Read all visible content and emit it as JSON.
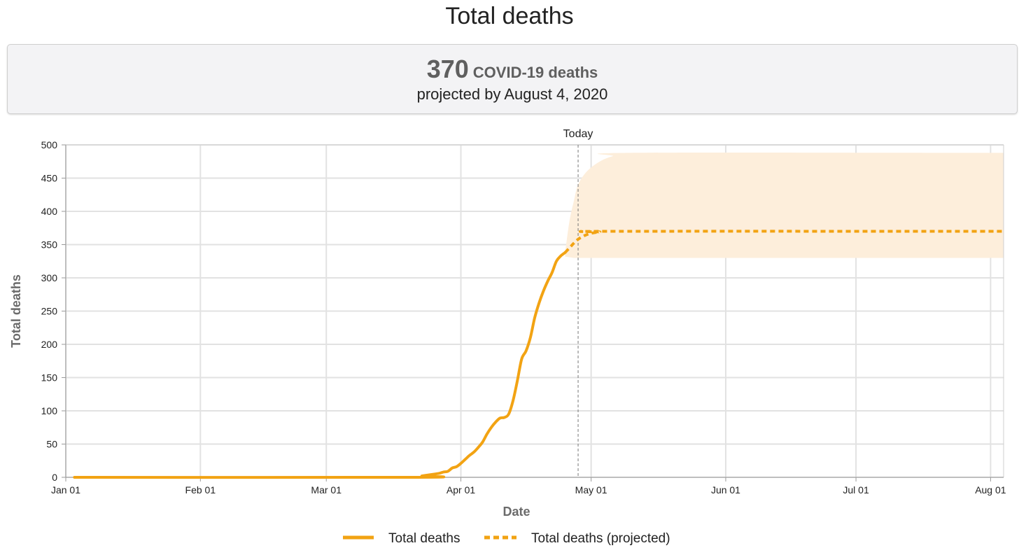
{
  "page": {
    "title": "Total deaths",
    "summary": {
      "value": "370",
      "unit": "COVID-19 deaths",
      "subtitle": "projected by August 4, 2020"
    }
  },
  "colors": {
    "series": "#f2a313",
    "band": "#fdeedb",
    "grid": "#e2e2e2",
    "axis": "#9a9a9a"
  },
  "chart_data": {
    "type": "line",
    "xlabel": "Date",
    "ylabel": "Total deaths",
    "x_ticks": [
      "Jan 01",
      "Feb 01",
      "Mar 01",
      "Apr 01",
      "May 01",
      "Jun 01",
      "Jul 01",
      "Aug 01"
    ],
    "x_tick_dates": [
      "2020-01-01",
      "2020-02-01",
      "2020-03-01",
      "2020-04-01",
      "2020-05-01",
      "2020-06-01",
      "2020-07-01",
      "2020-08-01"
    ],
    "xlim": [
      "2020-01-01",
      "2020-08-04"
    ],
    "ylim": [
      0,
      500
    ],
    "y_ticks": [
      0,
      50,
      100,
      150,
      200,
      250,
      300,
      350,
      400,
      450,
      500
    ],
    "today": {
      "label": "Today",
      "date": "2020-04-28"
    },
    "grid": true,
    "legend_position": "bottom",
    "series": [
      {
        "name": "Total deaths",
        "style": "solid",
        "points": [
          [
            "2020-01-03",
            0
          ],
          [
            "2020-03-22",
            0
          ],
          [
            "2020-03-23",
            2
          ],
          [
            "2020-03-25",
            4
          ],
          [
            "2020-03-27",
            6
          ],
          [
            "2020-03-28",
            8
          ],
          [
            "2020-03-29",
            9
          ],
          [
            "2020-03-30",
            14
          ],
          [
            "2020-03-31",
            16
          ],
          [
            "2020-04-01",
            21
          ],
          [
            "2020-04-02",
            27
          ],
          [
            "2020-04-03",
            33
          ],
          [
            "2020-04-04",
            38
          ],
          [
            "2020-04-05",
            45
          ],
          [
            "2020-04-06",
            53
          ],
          [
            "2020-04-07",
            65
          ],
          [
            "2020-04-08",
            75
          ],
          [
            "2020-04-09",
            83
          ],
          [
            "2020-04-10",
            89
          ],
          [
            "2020-04-11",
            90
          ],
          [
            "2020-04-12",
            95
          ],
          [
            "2020-04-13",
            115
          ],
          [
            "2020-04-14",
            145
          ],
          [
            "2020-04-15",
            178
          ],
          [
            "2020-04-16",
            190
          ],
          [
            "2020-04-17",
            210
          ],
          [
            "2020-04-18",
            240
          ],
          [
            "2020-04-19",
            262
          ],
          [
            "2020-04-20",
            280
          ],
          [
            "2020-04-21",
            295
          ],
          [
            "2020-04-22",
            308
          ],
          [
            "2020-04-23",
            325
          ],
          [
            "2020-04-24",
            333
          ],
          [
            "2020-04-25",
            338
          ]
        ]
      },
      {
        "name": "Total deaths (projected)",
        "style": "dashed",
        "points": [
          [
            "2020-04-25",
            338
          ],
          [
            "2020-04-26",
            345
          ],
          [
            "2020-04-27",
            352
          ],
          [
            "2020-04-28",
            358
          ],
          [
            "2020-04-29",
            362
          ],
          [
            "2020-04-30",
            365
          ],
          [
            "2020-05-01",
            367
          ],
          [
            "2020-05-03",
            369
          ],
          [
            "2020-05-06",
            370
          ],
          [
            "2020-08-04",
            370
          ]
        ],
        "band": {
          "upper": [
            [
              "2020-04-25",
              338
            ],
            [
              "2020-04-26",
              385
            ],
            [
              "2020-04-27",
              415
            ],
            [
              "2020-04-28",
              440
            ],
            [
              "2020-04-30",
              460
            ],
            [
              "2020-05-03",
              475
            ],
            [
              "2020-05-06",
              483
            ],
            [
              "2020-05-10",
              488
            ],
            [
              "2020-08-04",
              488
            ]
          ],
          "lower": [
            [
              "2020-04-25",
              332
            ],
            [
              "2020-04-27",
              330
            ],
            [
              "2020-08-04",
              330
            ]
          ]
        }
      }
    ]
  }
}
